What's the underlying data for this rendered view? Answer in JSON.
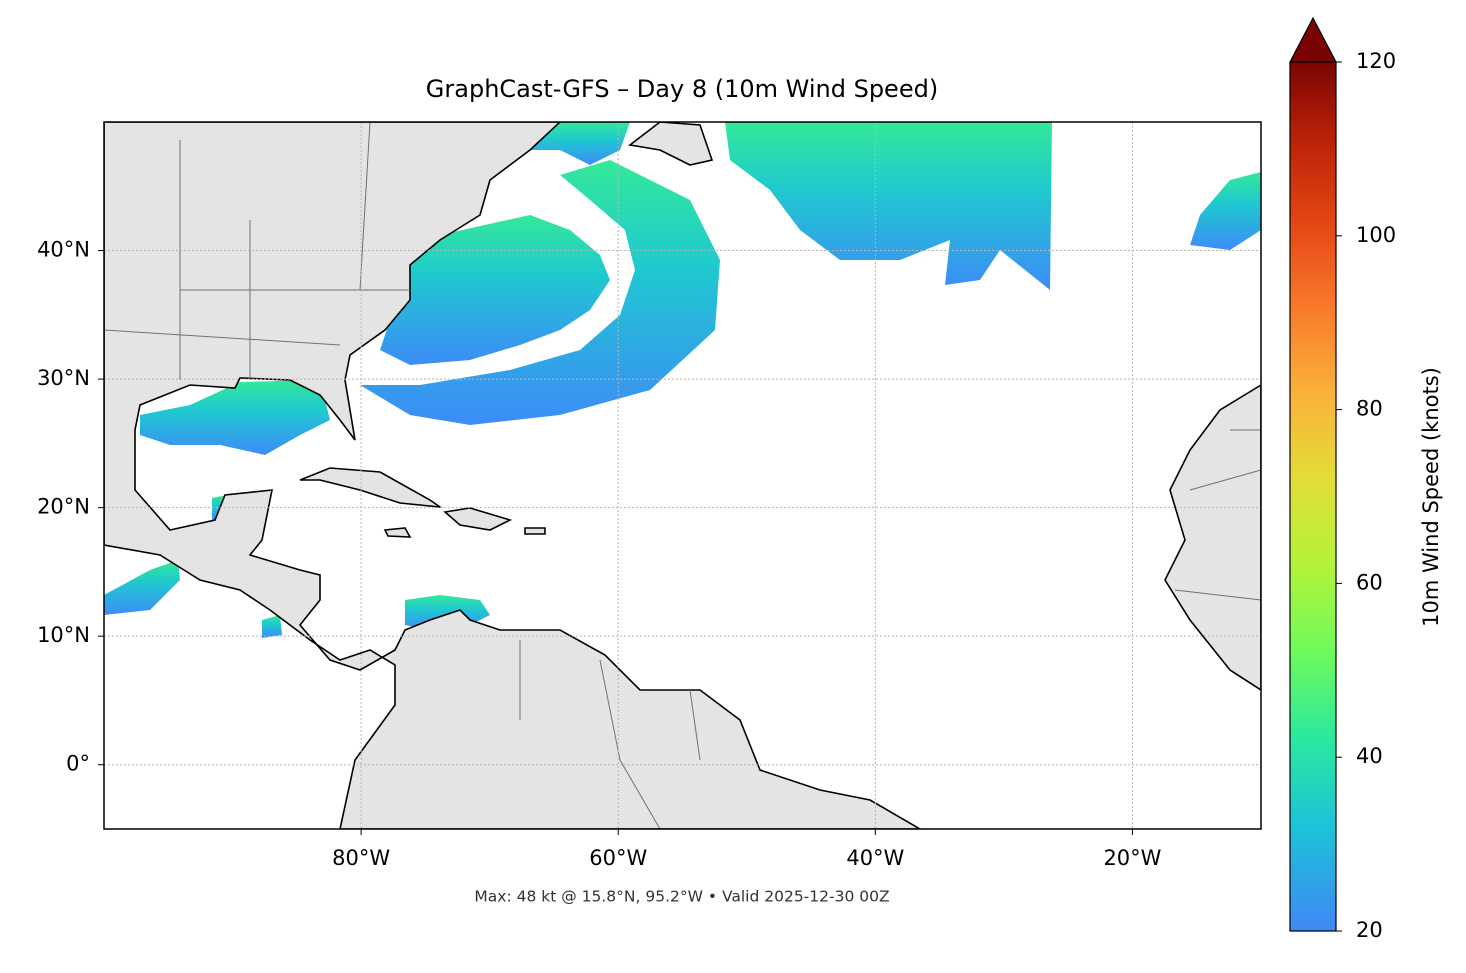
{
  "chart_data": {
    "type": "map",
    "title": "GraphCast-GFS – Day 8 (10m Wind Speed)",
    "annotation": "Max: 48 kt @ 15.8°N, 95.2°W • Valid 2025-12-30 00Z",
    "xlim": [
      -100,
      -10
    ],
    "ylim": [
      -5,
      50
    ],
    "xticks": [
      {
        "value": -80,
        "label": "80°W"
      },
      {
        "value": -60,
        "label": "60°W"
      },
      {
        "value": -40,
        "label": "40°W"
      },
      {
        "value": -20,
        "label": "20°W"
      }
    ],
    "yticks": [
      {
        "value": 0,
        "label": "0°"
      },
      {
        "value": 10,
        "label": "10°N"
      },
      {
        "value": 20,
        "label": "20°N"
      },
      {
        "value": 30,
        "label": "30°N"
      },
      {
        "value": 40,
        "label": "40°N"
      }
    ],
    "grid": true,
    "colorbar_label": "10m Wind Speed (knots)",
    "clim": [
      20,
      120
    ],
    "cticks": [
      20,
      40,
      60,
      80,
      100,
      120
    ],
    "colorbar_extend": "max"
  }
}
